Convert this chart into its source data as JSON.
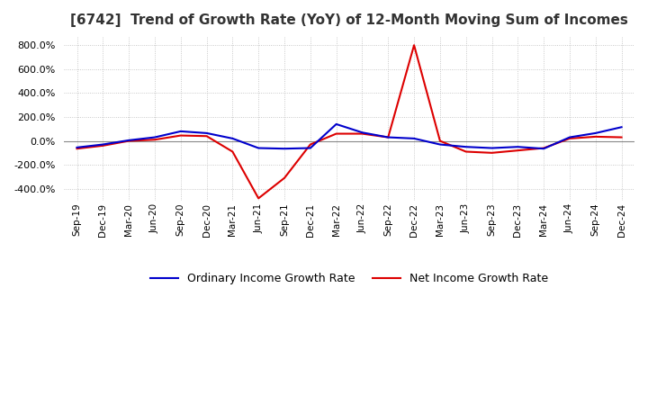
{
  "title": "[6742]  Trend of Growth Rate (YoY) of 12-Month Moving Sum of Incomes",
  "title_fontsize": 11,
  "ylim": [
    -500,
    870
  ],
  "yticks": [
    -400,
    -200,
    0,
    200,
    400,
    600,
    800
  ],
  "background_color": "#ffffff",
  "grid_color": "#bbbbbb",
  "ordinary_color": "#0000cc",
  "net_color": "#dd0000",
  "legend_labels": [
    "Ordinary Income Growth Rate",
    "Net Income Growth Rate"
  ],
  "x_labels": [
    "Sep-19",
    "Dec-19",
    "Mar-20",
    "Jun-20",
    "Sep-20",
    "Dec-20",
    "Mar-21",
    "Jun-21",
    "Sep-21",
    "Dec-21",
    "Mar-22",
    "Jun-22",
    "Sep-22",
    "Dec-22",
    "Mar-23",
    "Jun-23",
    "Sep-23",
    "Dec-23",
    "Mar-24",
    "Jun-24",
    "Sep-24",
    "Dec-24"
  ],
  "ordinary_income_growth": [
    -55,
    -30,
    5,
    30,
    80,
    65,
    20,
    -60,
    -65,
    -60,
    140,
    70,
    30,
    20,
    -30,
    -50,
    -60,
    -50,
    -65,
    30,
    65,
    115
  ],
  "net_income_growth": [
    -65,
    -40,
    0,
    10,
    45,
    40,
    -90,
    -480,
    -310,
    -30,
    60,
    60,
    30,
    800,
    0,
    -90,
    -100,
    -80,
    -60,
    20,
    35,
    30
  ]
}
